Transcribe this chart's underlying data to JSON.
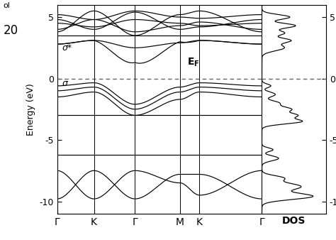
{
  "title_top": "ol",
  "title_num": "20",
  "ylabel": "Energy (eV)",
  "xlabel_dos": "DOS",
  "klabels": [
    "Γ",
    "K",
    "Γ",
    "M",
    "K",
    "Γ"
  ],
  "ylim": [
    -11,
    6
  ],
  "yticks": [
    -10,
    -5,
    0,
    5
  ],
  "sigma_star_label": "σ*",
  "sigma_label": "σ",
  "EF_label": "E",
  "bg_color": "#ffffff",
  "line_color": "#000000",
  "fermi_color": "#888888",
  "seg": [
    0.0,
    0.18,
    0.38,
    0.6,
    0.695,
    1.0
  ]
}
